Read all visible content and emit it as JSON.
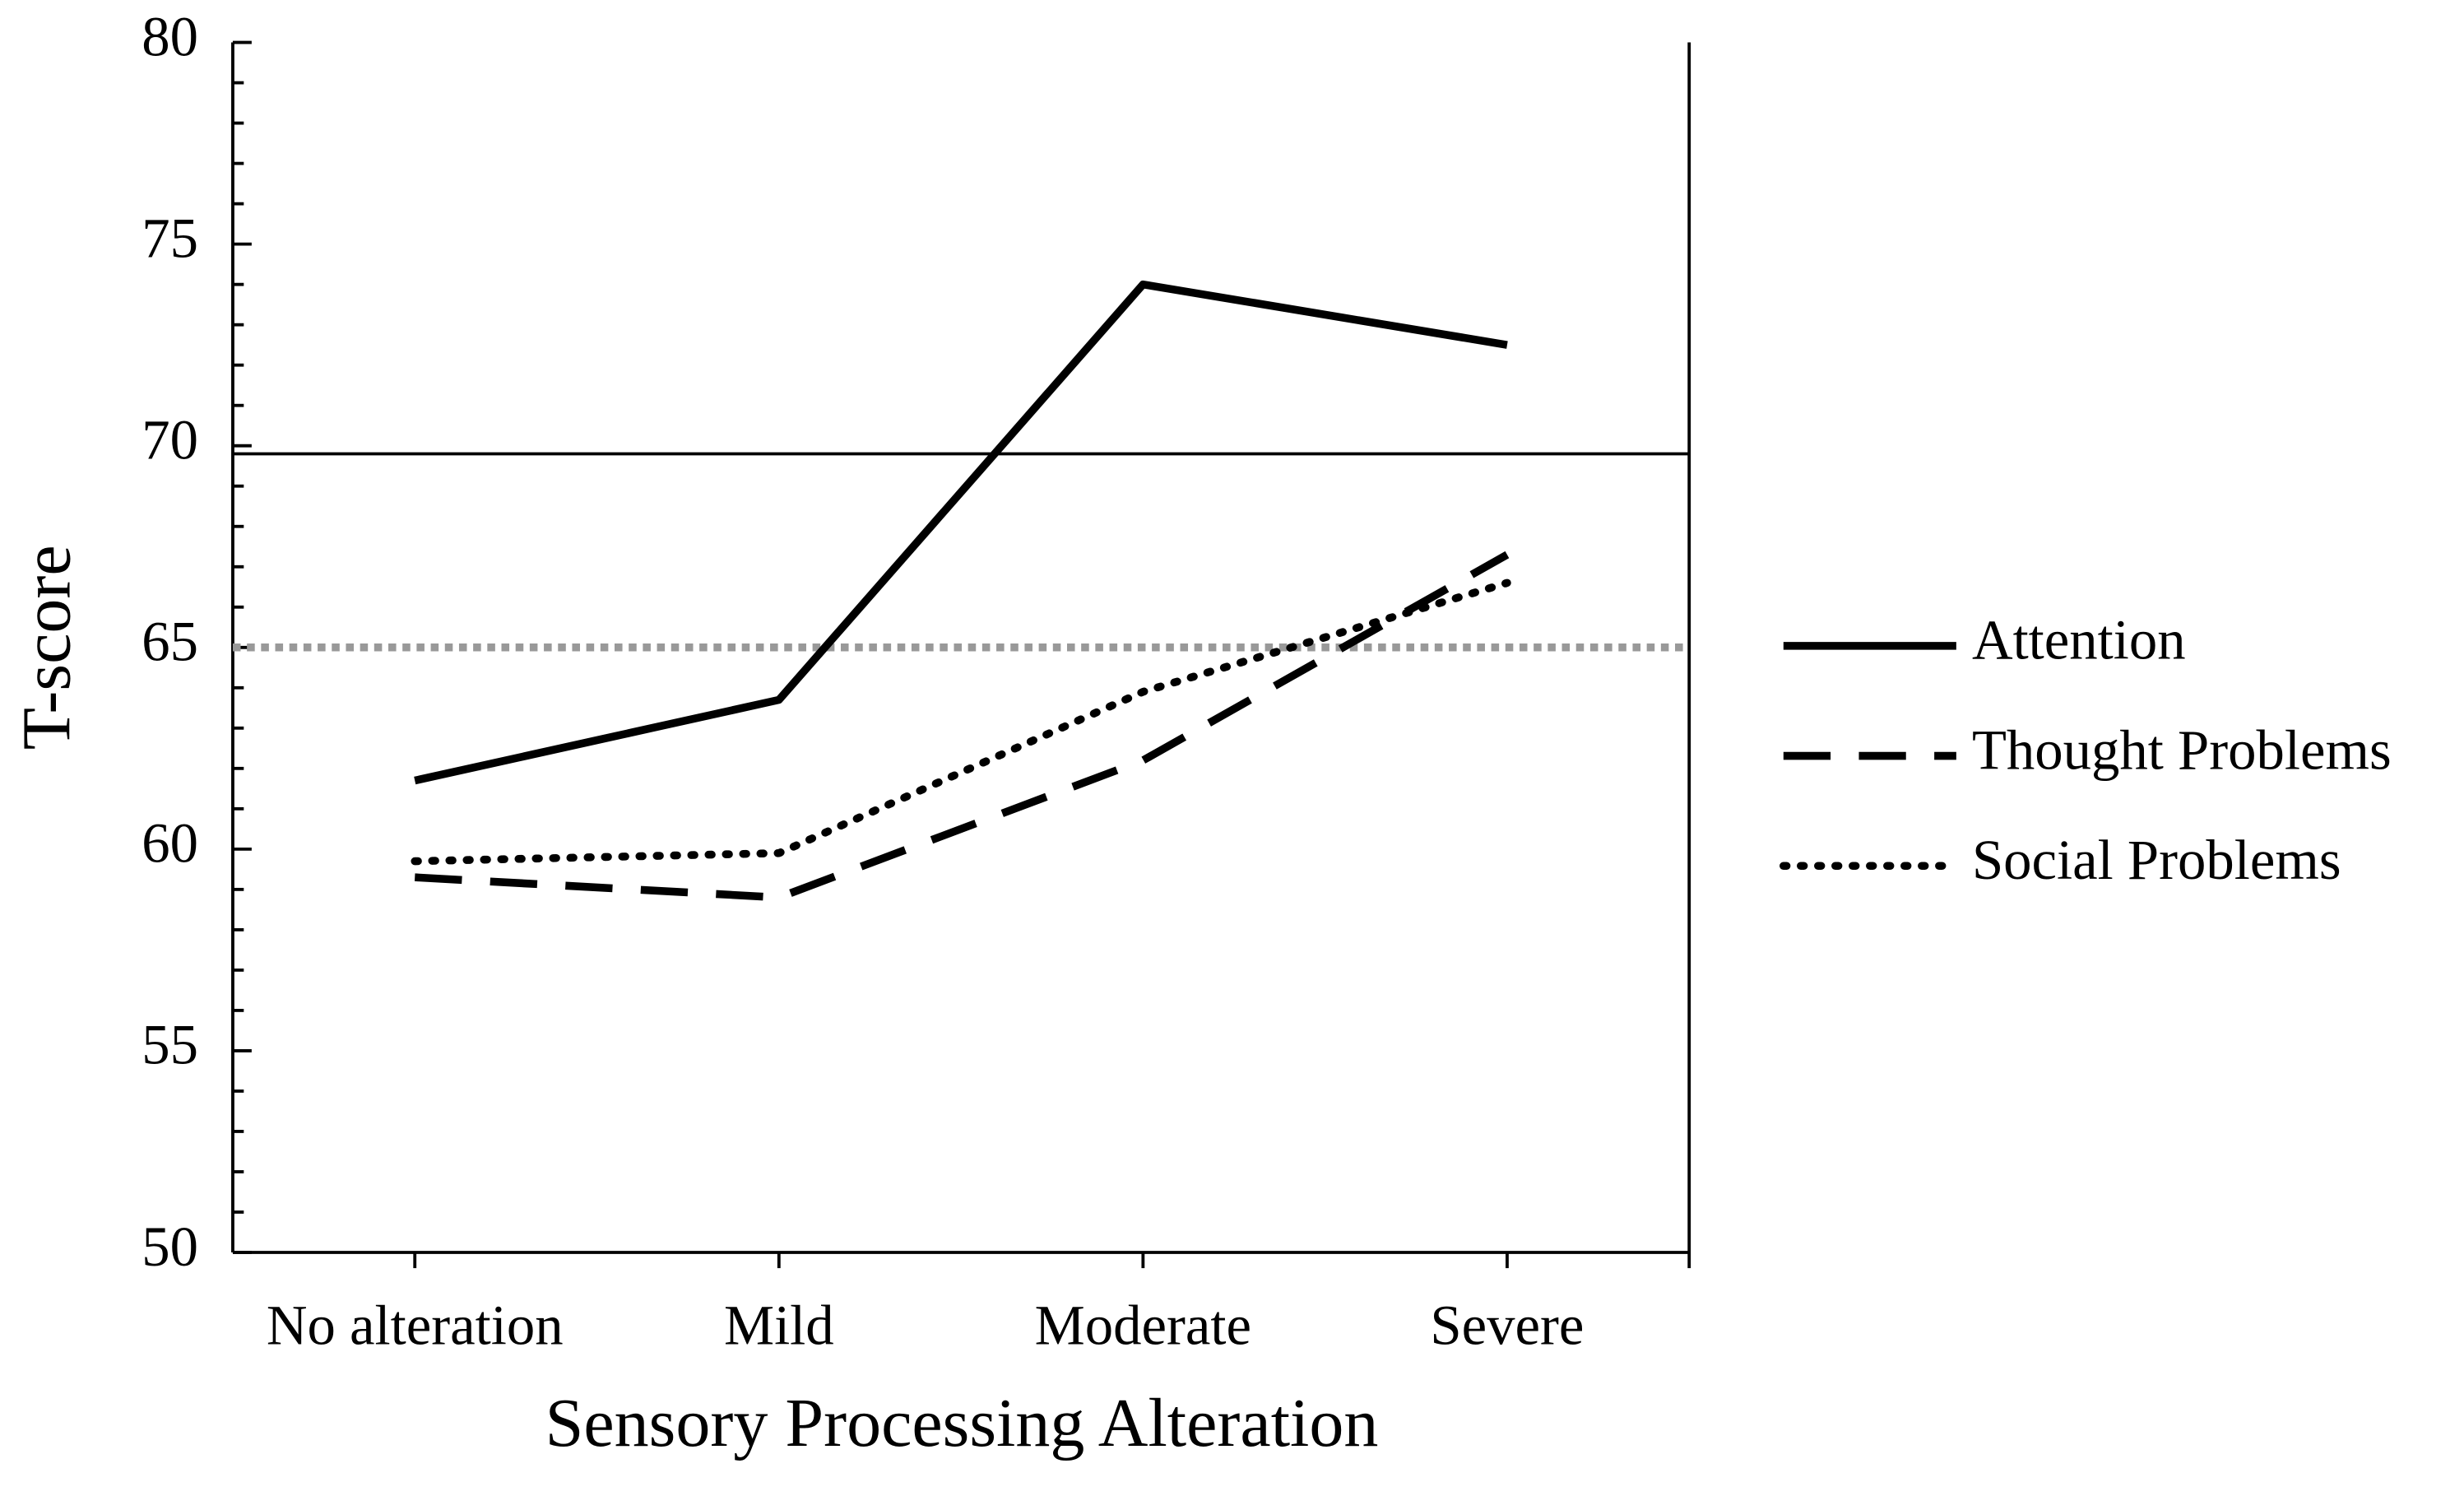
{
  "chart_data": {
    "type": "line",
    "x_label": "Sensory Processing Alteration",
    "y_label": "T-score",
    "categories": [
      "No alteration",
      "Mild",
      "Moderate",
      "Severe"
    ],
    "series": [
      {
        "name": "Attention",
        "color": "#000000",
        "style": "solid",
        "values": [
          61.7,
          63.7,
          74.0,
          72.5
        ]
      },
      {
        "name": "Thought Problems",
        "color": "#000000",
        "style": "dashed",
        "values": [
          59.3,
          58.8,
          62.2,
          67.3
        ]
      },
      {
        "name": "Social Problems",
        "color": "#000000",
        "style": "dotted",
        "values": [
          59.7,
          59.9,
          63.9,
          66.6
        ]
      }
    ],
    "reference_lines": [
      {
        "value": 69.8,
        "color": "#000000",
        "style": "solid"
      },
      {
        "value": 65,
        "color": "#999999",
        "style": "dotted"
      }
    ],
    "ylim": [
      50,
      80
    ],
    "yticks": [
      50,
      55,
      60,
      65,
      70,
      75,
      80
    ],
    "yminorticks": [
      51,
      52,
      53,
      54,
      56,
      57,
      58,
      59,
      61,
      62,
      63,
      64,
      66,
      67,
      68,
      69,
      71,
      72,
      73,
      74,
      76,
      77,
      78,
      79
    ],
    "legend": "right"
  }
}
